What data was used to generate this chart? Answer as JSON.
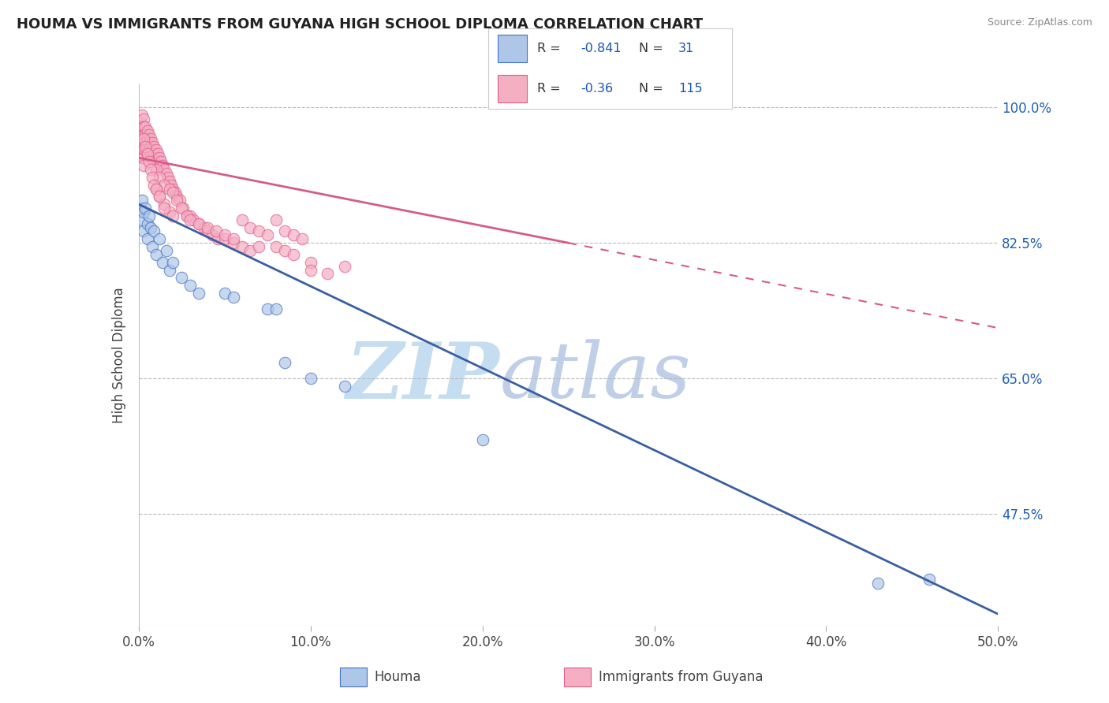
{
  "title": "HOUMA VS IMMIGRANTS FROM GUYANA HIGH SCHOOL DIPLOMA CORRELATION CHART",
  "source": "Source: ZipAtlas.com",
  "ylabel": "High School Diploma",
  "xlim": [
    0.0,
    0.5
  ],
  "ylim": [
    0.33,
    1.03
  ],
  "right_yticks": [
    0.475,
    0.65,
    0.825,
    1.0
  ],
  "right_yticklabels": [
    "47.5%",
    "65.0%",
    "82.5%",
    "100.0%"
  ],
  "xticks": [
    0.0,
    0.1,
    0.2,
    0.3,
    0.4,
    0.5
  ],
  "xticklabels": [
    "0.0%",
    "10.0%",
    "20.0%",
    "30.0%",
    "40.0%",
    "50.0%"
  ],
  "houma_R": -0.841,
  "houma_N": 31,
  "immigrants_R": -0.36,
  "immigrants_N": 115,
  "houma_color": "#aec6e8",
  "houma_edge_color": "#4472c4",
  "immigrants_color": "#f4afc3",
  "immigrants_edge_color": "#e05c8a",
  "houma_line_color": "#3a5fa0",
  "immigrants_line_color": "#d45c8a",
  "watermark_zip": "ZIP",
  "watermark_atlas": "atlas",
  "watermark_zip_color": "#c5ddf0",
  "watermark_atlas_color": "#c0cfe8",
  "legend_R_color": "#1a56b0",
  "legend_N_color": "#1a56b0",
  "houma_scatter_x": [
    0.001,
    0.002,
    0.002,
    0.003,
    0.003,
    0.004,
    0.005,
    0.005,
    0.006,
    0.007,
    0.008,
    0.009,
    0.01,
    0.012,
    0.014,
    0.016,
    0.018,
    0.02,
    0.025,
    0.03,
    0.035,
    0.05,
    0.055,
    0.075,
    0.08,
    0.085,
    0.1,
    0.12,
    0.2,
    0.43,
    0.46
  ],
  "houma_scatter_y": [
    0.87,
    0.88,
    0.855,
    0.865,
    0.84,
    0.87,
    0.85,
    0.83,
    0.86,
    0.845,
    0.82,
    0.84,
    0.81,
    0.83,
    0.8,
    0.815,
    0.79,
    0.8,
    0.78,
    0.77,
    0.76,
    0.76,
    0.755,
    0.74,
    0.74,
    0.67,
    0.65,
    0.64,
    0.57,
    0.385,
    0.39
  ],
  "immigrants_scatter_x": [
    0.001,
    0.001,
    0.001,
    0.001,
    0.001,
    0.001,
    0.001,
    0.002,
    0.002,
    0.002,
    0.002,
    0.002,
    0.002,
    0.002,
    0.003,
    0.003,
    0.003,
    0.003,
    0.003,
    0.003,
    0.003,
    0.004,
    0.004,
    0.004,
    0.004,
    0.005,
    0.005,
    0.005,
    0.005,
    0.006,
    0.006,
    0.006,
    0.007,
    0.007,
    0.007,
    0.008,
    0.008,
    0.008,
    0.009,
    0.009,
    0.01,
    0.01,
    0.011,
    0.011,
    0.012,
    0.012,
    0.013,
    0.014,
    0.015,
    0.016,
    0.017,
    0.018,
    0.019,
    0.02,
    0.021,
    0.022,
    0.024,
    0.026,
    0.028,
    0.03,
    0.032,
    0.035,
    0.038,
    0.04,
    0.043,
    0.046,
    0.05,
    0.055,
    0.06,
    0.065,
    0.07,
    0.075,
    0.08,
    0.085,
    0.09,
    0.095,
    0.01,
    0.012,
    0.015,
    0.018,
    0.02,
    0.022,
    0.025,
    0.028,
    0.03,
    0.035,
    0.04,
    0.045,
    0.05,
    0.055,
    0.06,
    0.065,
    0.07,
    0.01,
    0.012,
    0.015,
    0.018,
    0.02,
    0.1,
    0.12,
    0.003,
    0.004,
    0.005,
    0.006,
    0.007,
    0.008,
    0.009,
    0.01,
    0.012,
    0.015,
    0.08,
    0.085,
    0.09,
    0.1,
    0.11
  ],
  "immigrants_scatter_y": [
    0.98,
    0.97,
    0.965,
    0.96,
    0.95,
    0.945,
    0.94,
    0.99,
    0.975,
    0.965,
    0.96,
    0.955,
    0.945,
    0.935,
    0.985,
    0.975,
    0.965,
    0.955,
    0.945,
    0.935,
    0.925,
    0.975,
    0.965,
    0.955,
    0.945,
    0.97,
    0.96,
    0.95,
    0.94,
    0.965,
    0.955,
    0.945,
    0.96,
    0.95,
    0.94,
    0.955,
    0.945,
    0.935,
    0.95,
    0.94,
    0.945,
    0.935,
    0.94,
    0.93,
    0.935,
    0.925,
    0.93,
    0.925,
    0.92,
    0.915,
    0.91,
    0.905,
    0.9,
    0.895,
    0.89,
    0.885,
    0.88,
    0.87,
    0.86,
    0.86,
    0.855,
    0.85,
    0.845,
    0.84,
    0.835,
    0.83,
    0.83,
    0.825,
    0.855,
    0.845,
    0.84,
    0.835,
    0.855,
    0.84,
    0.835,
    0.83,
    0.92,
    0.91,
    0.9,
    0.895,
    0.89,
    0.88,
    0.87,
    0.86,
    0.855,
    0.85,
    0.845,
    0.84,
    0.835,
    0.83,
    0.82,
    0.815,
    0.82,
    0.895,
    0.885,
    0.875,
    0.865,
    0.86,
    0.8,
    0.795,
    0.96,
    0.95,
    0.94,
    0.93,
    0.92,
    0.91,
    0.9,
    0.895,
    0.885,
    0.87,
    0.82,
    0.815,
    0.81,
    0.79,
    0.785
  ],
  "houma_line_x0": 0.0,
  "houma_line_y0": 0.875,
  "houma_line_x1": 0.5,
  "houma_line_y1": 0.345,
  "immigrants_line_x0": 0.0,
  "immigrants_line_y0": 0.935,
  "immigrants_line_x1": 0.5,
  "immigrants_line_y1": 0.715
}
